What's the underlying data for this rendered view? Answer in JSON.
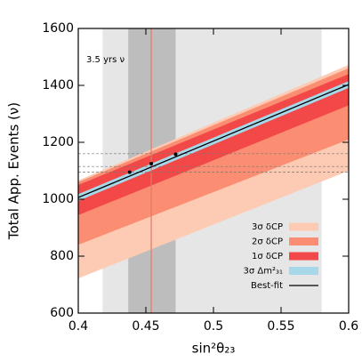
{
  "chart_data": {
    "type": "band",
    "xlabel": "sin²θ₂₃",
    "ylabel": "Total App. Events (ν)",
    "annotation": "3.5 yrs ν",
    "xlim": [
      0.4,
      0.6
    ],
    "ylim": [
      600,
      1600
    ],
    "xticks": [
      0.4,
      0.45,
      0.5,
      0.55,
      0.6
    ],
    "yticks": [
      600,
      800,
      1000,
      1200,
      1400,
      1600
    ],
    "regions": [
      {
        "xlim": [
          0.418,
          0.58
        ],
        "color": "#e6e6e6"
      },
      {
        "xlim": [
          0.437,
          0.472
        ],
        "color": "#bdbdbd"
      }
    ],
    "vline": {
      "x": 0.454,
      "color": "#e07a6a"
    },
    "hlines": [
      1160,
      1115,
      1095
    ],
    "series": [
      {
        "name": "3σ δCP",
        "color": "#fdcbb4",
        "x": [
          0.4,
          0.6
        ],
        "lower": [
          722,
          1100
        ],
        "upper": [
          1066,
          1472
        ]
      },
      {
        "name": "2σ δCP",
        "color": "#fb8e72",
        "x": [
          0.4,
          0.6
        ],
        "lower": [
          840,
          1210
        ],
        "upper": [
          1060,
          1460
        ]
      },
      {
        "name": "1σ δCP",
        "color": "#f24848",
        "x": [
          0.4,
          0.6
        ],
        "lower": [
          944,
          1330
        ],
        "upper": [
          1050,
          1440
        ]
      },
      {
        "name": "3σ Δm²₃₁",
        "color": "#a6d8ea",
        "x": [
          0.4,
          0.6
        ],
        "lower": [
          994,
          1391
        ],
        "upper": [
          1018,
          1415
        ]
      }
    ],
    "best_fit": {
      "name": "Best-fit",
      "color": "#000000",
      "x": [
        0.4,
        0.6
      ],
      "values": [
        1006,
        1403
      ]
    },
    "points": {
      "x": [
        0.438,
        0.454,
        0.472
      ],
      "values": [
        1095,
        1125,
        1158
      ]
    }
  }
}
